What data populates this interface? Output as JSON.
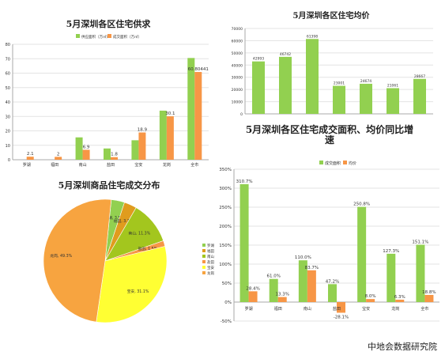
{
  "colors": {
    "green": "#92d050",
    "orange": "#f79646",
    "grid": "#e3e3e3",
    "axis": "#aaaaaa"
  },
  "footer": "中地会数据研究院",
  "chart_data": [
    {
      "type": "bar",
      "title": "5月深圳各区住宅供求",
      "categories": [
        "罗湖",
        "福田",
        "南山",
        "盐田",
        "宝安",
        "龙岗",
        "全市"
      ],
      "series": [
        {
          "name": "供应面积（万㎡）",
          "values": [
            0,
            0,
            15.5,
            7.8,
            13.5,
            34.0,
            70.5
          ]
        },
        {
          "name": "成交面积（万㎡）",
          "values": [
            2.1,
            2,
            6.9,
            1.8,
            18.9,
            30.1,
            60.80441
          ]
        }
      ],
      "data_labels": [
        [
          "",
          "",
          "",
          "",
          "",
          "",
          ""
        ],
        [
          "2.1",
          "2",
          "6.9",
          "1.8",
          "18.9",
          "30.1",
          "60.80441"
        ]
      ],
      "yticks": [
        "0",
        "10",
        "20",
        "30",
        "40",
        "50",
        "60",
        "70",
        "80"
      ],
      "ylim": [
        0,
        80
      ],
      "legend": "top"
    },
    {
      "type": "bar",
      "title": "5月深圳各区住宅均价",
      "categories": [
        "",
        "",
        "",
        "",
        "",
        "",
        ""
      ],
      "series": [
        {
          "name": "",
          "values": [
            42993,
            46742,
            61398,
            23001,
            24674,
            21061,
            28667
          ]
        }
      ],
      "data_labels": [
        "42993",
        "46742",
        "61398",
        "23001",
        "24674",
        "21061",
        "28667"
      ],
      "yticks": [
        "0",
        "10000",
        "20000",
        "30000",
        "40000",
        "50000",
        "60000",
        "70000"
      ],
      "ylim": [
        0,
        70000
      ]
    },
    {
      "type": "pie",
      "title": "5月深圳商品住宅成交分布",
      "categories": [
        "罗湖",
        "福田",
        "南山",
        "盐田",
        "宝安",
        "龙岗"
      ],
      "values": [
        3.5,
        3.3,
        11.3,
        1.5,
        31.1,
        49.3
      ],
      "slice_labels": [
        "罗湖, 3.5%",
        "福田, 3.3%",
        "南山, 11.3%",
        "盐田, 1.5%",
        "宝安, 31.1%",
        "龙岗, 49.3%"
      ],
      "colors": [
        "#92d050",
        "#e09c1e",
        "#a3c61e",
        "#f79646",
        "#ffff33",
        "#f7a440"
      ],
      "legend": "right"
    },
    {
      "type": "bar",
      "title_lines": [
        "5月深圳各区住宅成交面积、均价同比增",
        "速"
      ],
      "categories": [
        "罗湖",
        "福田",
        "南山",
        "盐田",
        "宝安",
        "龙岗",
        "全市"
      ],
      "series": [
        {
          "name": "成交面积",
          "values": [
            310.7,
            61.0,
            110.0,
            47.2,
            250.8,
            127.3,
            151.1
          ]
        },
        {
          "name": "均价",
          "values": [
            28.4,
            13.3,
            83.7,
            -28.1,
            8.0,
            6.3,
            18.8
          ]
        }
      ],
      "data_labels": [
        [
          "310.7%",
          "61.0%",
          "110.0%",
          "47.2%",
          "250.8%",
          "127.3%",
          "151.1%"
        ],
        [
          "28.4%",
          "13.3%",
          "83.7%",
          "-28.1%",
          "8.0%",
          "6.3%",
          "18.8%"
        ]
      ],
      "yticks": [
        "-50%",
        "0%",
        "50%",
        "100%",
        "150%",
        "200%",
        "250%",
        "300%",
        "350%"
      ],
      "ylim": [
        -50,
        350
      ],
      "legend": "top"
    }
  ]
}
